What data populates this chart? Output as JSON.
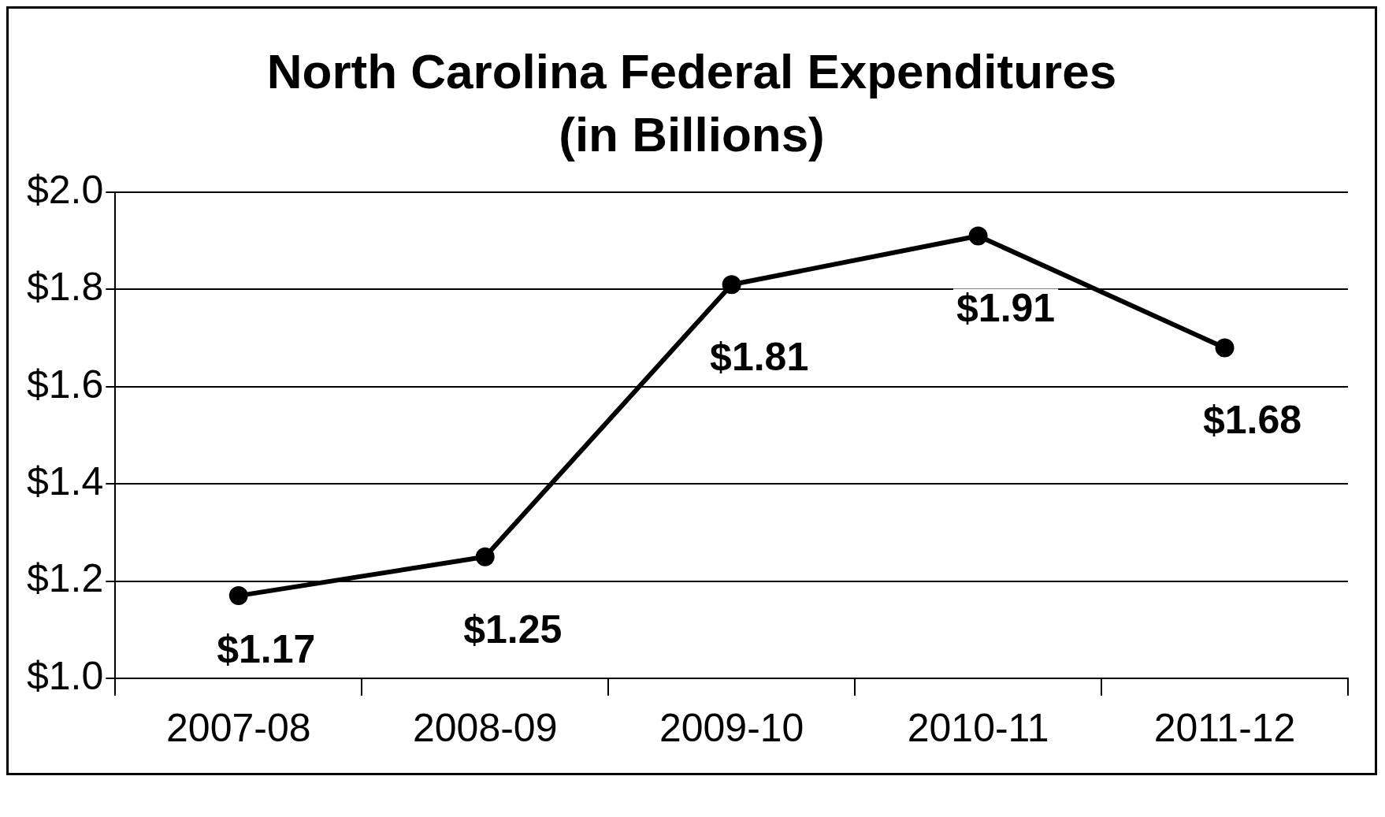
{
  "chart_data": {
    "type": "line",
    "title": "North Carolina Federal Expenditures",
    "subtitle": "(in Billions)",
    "categories": [
      "2007-08",
      "2008-09",
      "2009-10",
      "2010-11",
      "2011-12"
    ],
    "series": [
      {
        "color": "#000000",
        "values": [
          1.17,
          1.25,
          1.81,
          1.91,
          1.68
        ],
        "value_labels": [
          "$1.17",
          "$1.25",
          "$1.81",
          "$1.91",
          "$1.68"
        ]
      }
    ],
    "ylim": [
      1,
      2
    ],
    "yticks": [
      {
        "value": 1,
        "label": "$1.0"
      },
      {
        "value": 1.2,
        "label": "$1.2"
      },
      {
        "value": 1.4,
        "label": "$1.4"
      },
      {
        "value": 1.6,
        "label": "$1.6"
      },
      {
        "value": 1.8,
        "label": "$1.8"
      },
      {
        "value": 2,
        "label": "$2.0"
      }
    ],
    "grid": "y",
    "marker": "circle",
    "line_style": "solid",
    "legend": false
  }
}
